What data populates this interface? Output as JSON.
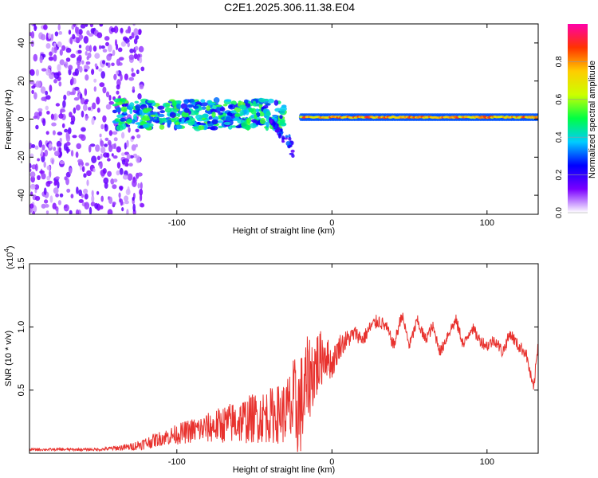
{
  "title": "C2E1.2025.306.11.38.E04",
  "chart_data": [
    {
      "type": "heatmap",
      "name": "spectrogram",
      "xlabel": "Height of straight line (km)",
      "ylabel": "Frequency (Hz)",
      "xlim": [
        -195,
        133
      ],
      "ylim": [
        -50,
        50
      ],
      "xticks": [
        -100,
        0,
        100
      ],
      "xtick_labels": [
        "-100",
        "0",
        "100"
      ],
      "yticks": [
        -40,
        -20,
        0,
        20,
        40
      ],
      "ytick_labels": [
        "-40",
        "-20",
        "0",
        "20",
        "40"
      ],
      "colorbar": {
        "label": "Normalized spectral amplitude",
        "range": [
          0.0,
          1.0
        ],
        "ticks": [
          0.0,
          0.2,
          0.4,
          0.6,
          0.8
        ],
        "tick_labels": [
          "0.0",
          "0.2",
          "0.4",
          "0.6",
          "0.8"
        ],
        "stops": [
          "#ffffff",
          "#7a00ff",
          "#0000ff",
          "#00ccff",
          "#00ff44",
          "#ccff00",
          "#ffcc00",
          "#ff3300",
          "#ff00aa"
        ]
      },
      "regions": [
        {
          "desc": "noise",
          "x": [
            -195,
            -122
          ],
          "y": [
            -50,
            50
          ],
          "amplitude": 0.12
        },
        {
          "desc": "turbulent band",
          "x": [
            -140,
            -30
          ],
          "y": [
            -5,
            10
          ],
          "amplitude": 0.4
        },
        {
          "desc": "descending tail",
          "x": [
            -40,
            -25
          ],
          "y": [
            -18,
            0
          ],
          "amplitude": 0.2
        },
        {
          "desc": "stable line",
          "x": [
            -20,
            133
          ],
          "y": [
            -2,
            4
          ],
          "center": 1,
          "amplitude": 0.9
        }
      ]
    },
    {
      "type": "line",
      "name": "snr",
      "xlabel": "Height of straight line (km)",
      "ylabel": "SNR (10 * v/v)",
      "multiplier": "(x10",
      "multiplier_exp": "4",
      "multiplier_close": ")",
      "xlim": [
        -195,
        133
      ],
      "ylim": [
        0,
        1.5
      ],
      "xticks": [
        -100,
        0,
        100
      ],
      "xtick_labels": [
        "-100",
        "0",
        "100"
      ],
      "yticks": [
        0.5,
        1.0,
        1.5
      ],
      "ytick_labels": [
        "0.5",
        "1.0",
        "1.5"
      ],
      "color": "#e8322e",
      "series": [
        {
          "name": "SNR",
          "x": [
            -195,
            -170,
            -150,
            -130,
            -120,
            -110,
            -100,
            -90,
            -80,
            -70,
            -60,
            -50,
            -40,
            -30,
            -25,
            -20,
            -15,
            -12,
            -10,
            -8,
            -5,
            0,
            5,
            10,
            15,
            20,
            25,
            30,
            35,
            40,
            45,
            50,
            55,
            60,
            65,
            70,
            75,
            80,
            85,
            90,
            95,
            100,
            105,
            110,
            115,
            120,
            125,
            130,
            133
          ],
          "y": [
            0.03,
            0.03,
            0.03,
            0.05,
            0.08,
            0.12,
            0.15,
            0.18,
            0.2,
            0.23,
            0.25,
            0.28,
            0.3,
            0.32,
            0.35,
            0.35,
            0.6,
            0.65,
            0.7,
            0.72,
            0.8,
            0.7,
            0.85,
            0.9,
            0.95,
            0.9,
            1.0,
            1.05,
            1.0,
            0.85,
            1.1,
            0.85,
            1.05,
            0.9,
            1.0,
            0.8,
            0.95,
            1.05,
            0.85,
            1.0,
            0.9,
            0.85,
            0.9,
            0.8,
            0.95,
            0.85,
            0.8,
            0.5,
            0.88
          ],
          "variability": [
            0.01,
            0.01,
            0.01,
            0.03,
            0.05,
            0.06,
            0.08,
            0.1,
            0.12,
            0.15,
            0.18,
            0.2,
            0.22,
            0.25,
            0.4,
            0.45,
            0.35,
            0.3,
            0.3,
            0.25,
            0.2,
            0.12,
            0.1,
            0.08,
            0.06,
            0.06,
            0.06,
            0.06,
            0.05,
            0.05,
            0.05,
            0.05,
            0.05,
            0.05,
            0.05,
            0.05,
            0.05,
            0.05,
            0.05,
            0.05,
            0.05,
            0.05,
            0.05,
            0.05,
            0.05,
            0.05,
            0.05,
            0.05,
            0.05
          ]
        }
      ]
    }
  ]
}
